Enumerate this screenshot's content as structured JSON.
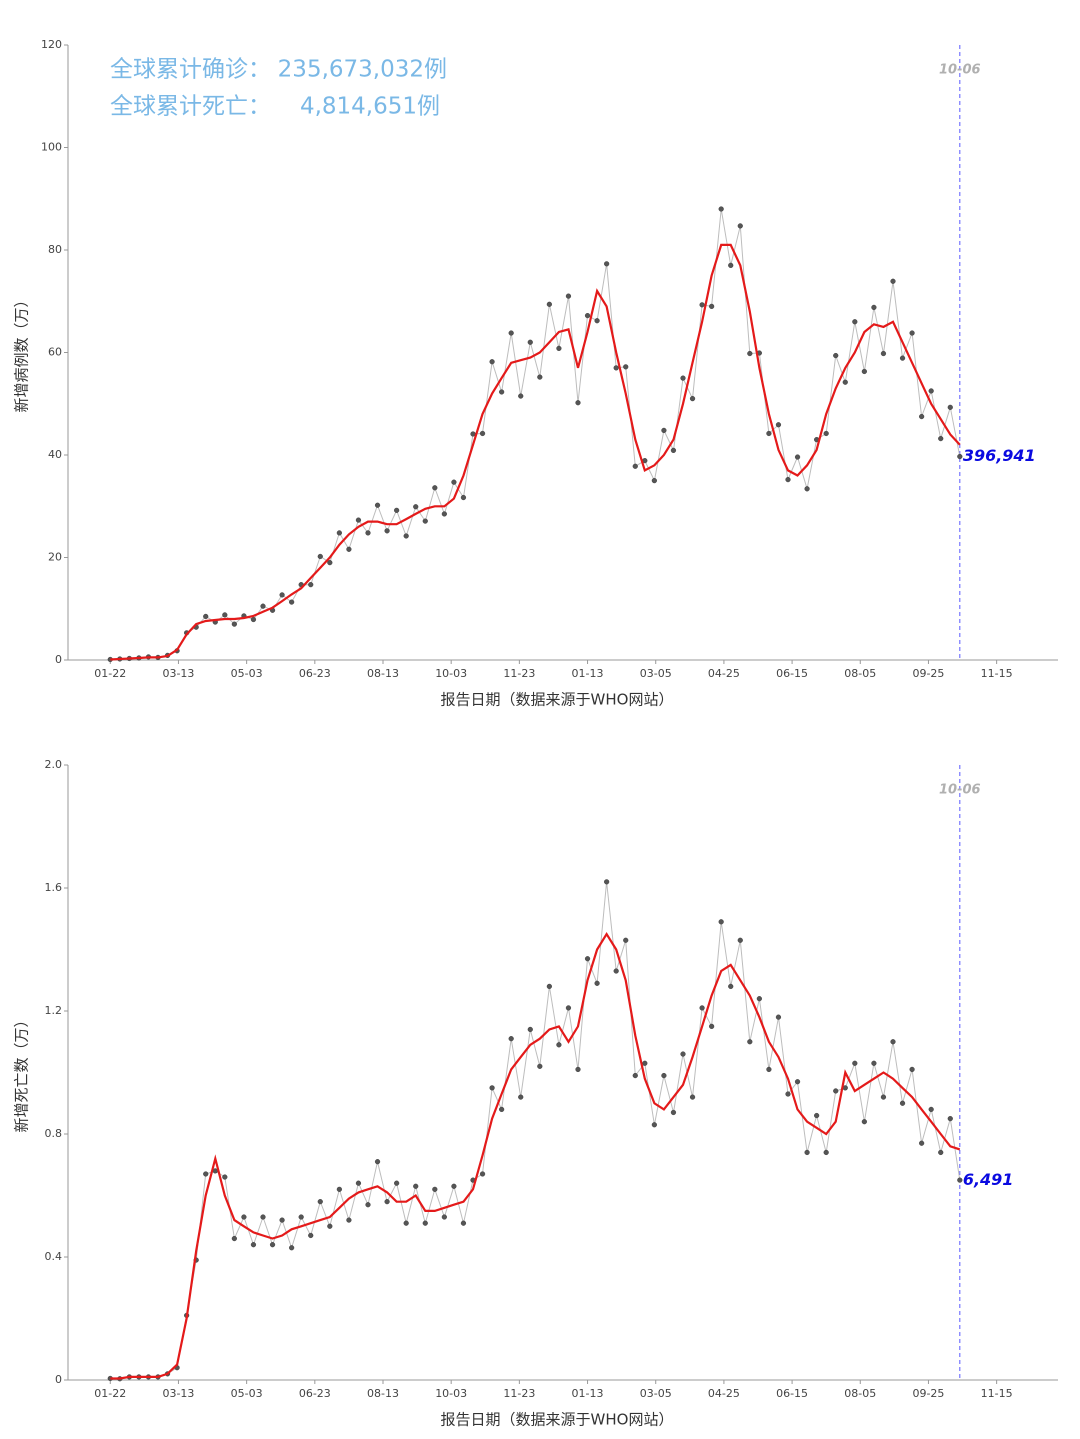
{
  "headline": {
    "rows": [
      {
        "label": "全球累计确诊：",
        "value": "235,673,032例"
      },
      {
        "label": "全球累计死亡：",
        "value": "4,814,651例"
      }
    ]
  },
  "chart_data": [
    {
      "type": "line",
      "ylabel": "新增病例数（万）",
      "xlabel": "报告日期（数据来源于WHO网站）",
      "xlim": [
        -31,
        695
      ],
      "ylim": [
        0,
        120
      ],
      "yticks": [
        0,
        20,
        40,
        60,
        80,
        100,
        120
      ],
      "xticks": [
        {
          "value": 0,
          "label": "01-22"
        },
        {
          "value": 50,
          "label": "03-13"
        },
        {
          "value": 100,
          "label": "05-03"
        },
        {
          "value": 150,
          "label": "06-23"
        },
        {
          "value": 200,
          "label": "08-13"
        },
        {
          "value": 250,
          "label": "10-03"
        },
        {
          "value": 300,
          "label": "11-23"
        },
        {
          "value": 350,
          "label": "01-13"
        },
        {
          "value": 400,
          "label": "03-05"
        },
        {
          "value": 450,
          "label": "04-25"
        },
        {
          "value": 500,
          "label": "06-15"
        },
        {
          "value": 550,
          "label": "08-05"
        },
        {
          "value": 600,
          "label": "09-25"
        },
        {
          "value": 650,
          "label": "11-15"
        }
      ],
      "x": [
        0,
        7,
        14,
        21,
        28,
        35,
        42,
        49,
        56,
        63,
        70,
        77,
        84,
        91,
        98,
        105,
        112,
        119,
        126,
        133,
        140,
        147,
        154,
        161,
        168,
        175,
        182,
        189,
        196,
        203,
        210,
        217,
        224,
        231,
        238,
        245,
        252,
        259,
        266,
        273,
        280,
        287,
        294,
        301,
        308,
        315,
        322,
        329,
        336,
        343,
        350,
        357,
        364,
        371,
        378,
        385,
        392,
        399,
        406,
        413,
        420,
        427,
        434,
        441,
        448,
        455,
        462,
        469,
        476,
        483,
        490,
        497,
        504,
        511,
        518,
        525,
        532,
        539,
        546,
        553,
        560,
        567,
        574,
        581,
        588,
        595,
        602,
        609,
        616,
        623
      ],
      "series": [
        {
          "color": "#555555",
          "line_color": "#bdbdbd",
          "marker": true,
          "values": [
            0.1,
            0.2,
            0.3,
            0.4,
            0.6,
            0.5,
            0.9,
            1.8,
            5.3,
            6.4,
            8.5,
            7.4,
            8.8,
            7,
            8.6,
            7.9,
            10.5,
            9.7,
            12.7,
            11.3,
            14.7,
            14.7,
            20.2,
            19,
            24.8,
            21.6,
            27.3,
            24.8,
            30.2,
            25.2,
            29.2,
            24.2,
            29.9,
            27.1,
            33.6,
            28.5,
            34.7,
            31.7,
            44.1,
            44.2,
            58.2,
            52.3,
            63.8,
            51.5,
            62,
            55.2,
            69.4,
            60.8,
            71,
            50.2,
            67.2,
            66.2,
            77.3,
            57,
            57.2,
            37.8,
            38.9,
            35,
            44.8,
            40.9,
            55,
            51,
            69.3,
            69,
            88,
            77,
            84.7,
            59.8,
            59.9,
            44.2,
            45.9,
            35.2,
            39.6,
            33.4,
            43,
            44.2,
            59.4,
            54.2,
            66,
            56.3,
            68.8,
            59.8,
            73.9,
            58.9,
            63.8,
            47.5,
            52.5,
            43.2,
            49.3,
            39.7
          ]
        },
        {
          "color": "#e41a1a",
          "marker": false,
          "values": [
            0.1,
            0.2,
            0.3,
            0.4,
            0.5,
            0.5,
            0.8,
            2,
            5,
            7,
            7.6,
            7.8,
            8,
            8,
            8.2,
            8.6,
            9.4,
            10.2,
            11.5,
            12.8,
            14,
            16,
            18,
            20,
            22.5,
            24.5,
            26,
            27,
            27,
            26.5,
            26.5,
            27.5,
            28.5,
            29.5,
            30,
            30,
            31.5,
            36,
            42,
            48,
            52,
            55,
            58,
            58.5,
            59,
            60,
            62,
            64,
            64.5,
            57,
            64,
            72,
            69,
            60,
            52,
            43,
            37,
            38,
            40,
            43,
            50,
            58,
            66,
            75,
            81,
            81,
            77,
            68,
            57,
            48,
            41,
            37,
            36,
            38,
            41,
            48,
            53,
            57,
            60,
            64,
            65.5,
            65,
            66,
            62,
            58,
            54,
            50,
            47,
            44,
            42
          ]
        }
      ],
      "vline": {
        "x": 623,
        "label": "10-06"
      },
      "annotation": {
        "x": 623,
        "value": 39.6941,
        "label": "396,941"
      }
    },
    {
      "type": "line",
      "ylabel": "新增死亡数（万）",
      "xlabel": "报告日期（数据来源于WHO网站）",
      "xlim": [
        -31,
        695
      ],
      "ylim": [
        0,
        2
      ],
      "yticks": [
        0,
        0.4,
        0.8,
        1.2,
        1.6,
        {
          "value": 2,
          "label": "2.0"
        }
      ],
      "xticks": [
        {
          "value": 0,
          "label": "01-22"
        },
        {
          "value": 50,
          "label": "03-13"
        },
        {
          "value": 100,
          "label": "05-03"
        },
        {
          "value": 150,
          "label": "06-23"
        },
        {
          "value": 200,
          "label": "08-13"
        },
        {
          "value": 250,
          "label": "10-03"
        },
        {
          "value": 300,
          "label": "11-23"
        },
        {
          "value": 350,
          "label": "01-13"
        },
        {
          "value": 400,
          "label": "03-05"
        },
        {
          "value": 450,
          "label": "04-25"
        },
        {
          "value": 500,
          "label": "06-15"
        },
        {
          "value": 550,
          "label": "08-05"
        },
        {
          "value": 600,
          "label": "09-25"
        },
        {
          "value": 650,
          "label": "11-15"
        }
      ],
      "x": [
        0,
        7,
        14,
        21,
        28,
        35,
        42,
        49,
        56,
        63,
        70,
        77,
        84,
        91,
        98,
        105,
        112,
        119,
        126,
        133,
        140,
        147,
        154,
        161,
        168,
        175,
        182,
        189,
        196,
        203,
        210,
        217,
        224,
        231,
        238,
        245,
        252,
        259,
        266,
        273,
        280,
        287,
        294,
        301,
        308,
        315,
        322,
        329,
        336,
        343,
        350,
        357,
        364,
        371,
        378,
        385,
        392,
        399,
        406,
        413,
        420,
        427,
        434,
        441,
        448,
        455,
        462,
        469,
        476,
        483,
        490,
        497,
        504,
        511,
        518,
        525,
        532,
        539,
        546,
        553,
        560,
        567,
        574,
        581,
        588,
        595,
        602,
        609,
        616,
        623
      ],
      "series": [
        {
          "color": "#555555",
          "line_color": "#bdbdbd",
          "marker": true,
          "values": [
            0.005,
            0.004,
            0.01,
            0.01,
            0.01,
            0.01,
            0.02,
            0.04,
            0.21,
            0.39,
            0.67,
            0.68,
            0.66,
            0.46,
            0.53,
            0.44,
            0.53,
            0.44,
            0.52,
            0.43,
            0.53,
            0.47,
            0.58,
            0.5,
            0.62,
            0.52,
            0.64,
            0.57,
            0.71,
            0.58,
            0.64,
            0.51,
            0.63,
            0.51,
            0.62,
            0.53,
            0.63,
            0.51,
            0.65,
            0.67,
            0.95,
            0.88,
            1.11,
            0.92,
            1.14,
            1.02,
            1.28,
            1.09,
            1.21,
            1.01,
            1.37,
            1.29,
            1.62,
            1.33,
            1.43,
            0.99,
            1.03,
            0.83,
            0.99,
            0.87,
            1.06,
            0.92,
            1.21,
            1.15,
            1.49,
            1.28,
            1.43,
            1.1,
            1.24,
            1.01,
            1.18,
            0.93,
            0.97,
            0.74,
            0.86,
            0.74,
            0.94,
            0.95,
            1.03,
            0.84,
            1.03,
            0.92,
            1.1,
            0.9,
            1.01,
            0.77,
            0.88,
            0.74,
            0.85,
            0.65
          ]
        },
        {
          "color": "#e41a1a",
          "marker": false,
          "values": [
            0.005,
            0.005,
            0.01,
            0.01,
            0.01,
            0.01,
            0.02,
            0.05,
            0.2,
            0.42,
            0.6,
            0.72,
            0.6,
            0.52,
            0.5,
            0.48,
            0.47,
            0.46,
            0.47,
            0.49,
            0.5,
            0.51,
            0.52,
            0.53,
            0.56,
            0.59,
            0.61,
            0.62,
            0.63,
            0.61,
            0.58,
            0.58,
            0.6,
            0.55,
            0.55,
            0.56,
            0.57,
            0.58,
            0.62,
            0.73,
            0.85,
            0.93,
            1.01,
            1.05,
            1.09,
            1.11,
            1.14,
            1.15,
            1.1,
            1.15,
            1.3,
            1.4,
            1.45,
            1.4,
            1.3,
            1.12,
            0.98,
            0.9,
            0.88,
            0.92,
            0.96,
            1.05,
            1.15,
            1.25,
            1.33,
            1.35,
            1.3,
            1.25,
            1.18,
            1.1,
            1.05,
            0.98,
            0.88,
            0.84,
            0.82,
            0.8,
            0.84,
            1.0,
            0.94,
            0.96,
            0.98,
            1.0,
            0.98,
            0.95,
            0.92,
            0.88,
            0.84,
            0.8,
            0.76,
            0.75
          ]
        }
      ],
      "vline": {
        "x": 623,
        "label": "10-06"
      },
      "annotation": {
        "x": 623,
        "value": 0.6491,
        "label": "6,491"
      }
    }
  ]
}
